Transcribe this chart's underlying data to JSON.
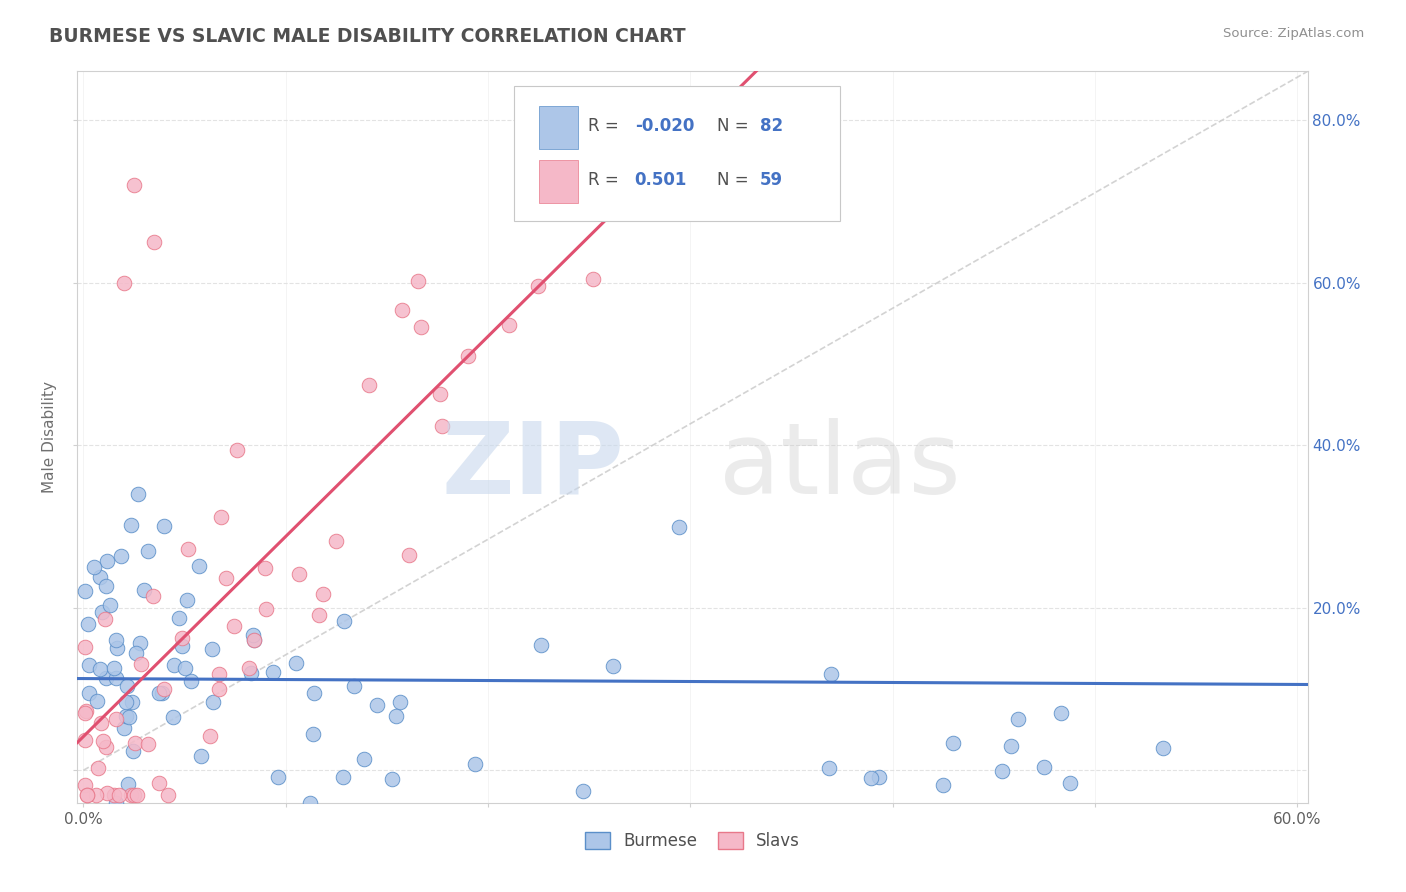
{
  "title": "BURMESE VS SLAVIC MALE DISABILITY CORRELATION CHART",
  "source": "Source: ZipAtlas.com",
  "ylabel": "Male Disability",
  "xlim": [
    -0.003,
    0.605
  ],
  "ylim": [
    -0.04,
    0.86
  ],
  "xticks": [
    0.0,
    0.1,
    0.2,
    0.3,
    0.4,
    0.5,
    0.6
  ],
  "xtick_labels": [
    "0.0%",
    "",
    "",
    "",
    "",
    "",
    "60.0%"
  ],
  "yticks": [
    0.0,
    0.2,
    0.4,
    0.6,
    0.8
  ],
  "ytick_labels_right": [
    "",
    "20.0%",
    "40.0%",
    "60.0%",
    "80.0%"
  ],
  "blue_color": "#adc6e8",
  "blue_edge_color": "#5b8fc9",
  "pink_color": "#f5b8c8",
  "pink_edge_color": "#e8788a",
  "blue_line_color": "#4472c4",
  "pink_line_color": "#e05070",
  "diag_line_color": "#c8c8c8",
  "title_color": "#505050",
  "source_color": "#909090",
  "legend_text_color": "#4472c4",
  "axis_color": "#d0d0d0",
  "grid_color": "#e0e0e0",
  "background_color": "#ffffff",
  "watermark_zip_color": "#c8d8ed",
  "watermark_atlas_color": "#c8c8c8"
}
